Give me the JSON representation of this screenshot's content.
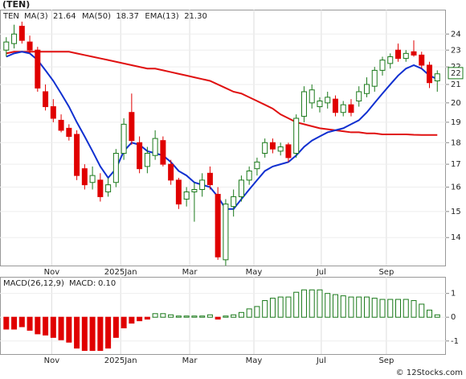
{
  "chart_data": [
    {
      "type": "candlestick",
      "title": "(TEN)",
      "symbol": "TEN",
      "log_scale": true,
      "grid": true,
      "up_color": "#1b7a1b",
      "down_color": "#e00000",
      "categories": [
        null,
        null,
        null,
        null,
        null,
        null,
        null,
        null,
        null,
        null,
        null,
        null,
        null,
        null,
        null,
        null,
        null,
        null,
        null,
        null,
        null,
        null,
        null,
        null,
        null,
        null,
        null,
        null,
        null,
        null,
        null,
        null,
        null,
        null,
        null,
        null,
        null,
        null,
        null,
        null,
        null,
        null,
        null,
        null,
        null,
        null,
        null,
        null,
        null,
        null,
        null,
        null,
        null,
        null,
        null,
        null
      ],
      "open": [
        23.0,
        23.4,
        24.5,
        23.5,
        23.0,
        20.6,
        19.8,
        19.1,
        18.7,
        18.4,
        16.8,
        16.2,
        16.3,
        15.8,
        16.2,
        17.5,
        19.5,
        18.0,
        16.9,
        17.4,
        18.1,
        17.0,
        16.3,
        15.5,
        15.8,
        15.9,
        16.6,
        15.7,
        13.2,
        15.2,
        15.6,
        16.3,
        16.8,
        17.5,
        18.0,
        17.6,
        17.9,
        17.5,
        19.3,
        20.0,
        19.8,
        20.0,
        20.2,
        19.5,
        19.9,
        20.1,
        20.5,
        20.9,
        21.8,
        22.2,
        23.0,
        22.5,
        22.9,
        22.7,
        22.1,
        21.2
      ],
      "high": [
        23.8,
        24.6,
        24.8,
        23.9,
        23.2,
        21.0,
        20.2,
        19.4,
        18.9,
        18.6,
        17.0,
        16.9,
        16.6,
        16.4,
        17.7,
        19.2,
        20.5,
        18.3,
        17.8,
        18.6,
        18.3,
        17.2,
        16.4,
        16.0,
        16.2,
        16.6,
        16.9,
        16.0,
        15.5,
        15.9,
        16.5,
        16.9,
        17.3,
        18.2,
        18.2,
        18.0,
        18.0,
        19.4,
        20.9,
        21.0,
        20.3,
        20.6,
        20.4,
        20.1,
        20.2,
        20.9,
        21.4,
        22.0,
        22.6,
        22.8,
        23.4,
        23.0,
        23.6,
        22.9,
        22.3,
        21.8
      ],
      "low": [
        22.6,
        23.1,
        23.4,
        22.8,
        20.6,
        19.6,
        19.0,
        18.5,
        18.1,
        16.3,
        15.9,
        15.9,
        15.4,
        15.6,
        16.0,
        17.2,
        17.9,
        16.6,
        16.6,
        17.2,
        16.9,
        16.1,
        15.1,
        15.2,
        14.6,
        15.6,
        15.9,
        13.2,
        13.0,
        14.8,
        15.4,
        16.1,
        16.5,
        17.3,
        17.5,
        17.4,
        17.1,
        17.3,
        19.0,
        19.7,
        19.5,
        19.7,
        19.3,
        19.3,
        19.3,
        19.8,
        20.3,
        20.6,
        21.5,
        21.9,
        22.3,
        22.3,
        22.6,
        21.9,
        20.8,
        20.6
      ],
      "close": [
        23.5,
        24.0,
        23.6,
        23.0,
        20.8,
        19.8,
        19.2,
        18.6,
        18.3,
        16.5,
        16.1,
        16.5,
        15.6,
        16.1,
        17.5,
        18.9,
        18.1,
        16.8,
        17.5,
        18.2,
        17.0,
        16.3,
        15.3,
        15.8,
        15.9,
        16.3,
        16.1,
        13.3,
        15.3,
        15.6,
        16.3,
        16.7,
        17.1,
        18.0,
        17.7,
        17.8,
        17.3,
        19.2,
        20.6,
        20.7,
        20.1,
        20.3,
        19.5,
        19.9,
        19.5,
        20.6,
        21.0,
        21.8,
        22.4,
        22.6,
        22.5,
        22.8,
        22.7,
        22.1,
        21.1,
        21.6
      ],
      "ma3": {
        "name": "MA(3)",
        "color": "#2233cc",
        "last": {
          "value": 21.64,
          "label": "21.64"
        }
      },
      "series": [
        {
          "name": "MA(50)",
          "color": "#e01010",
          "last": {
            "value": 18.37,
            "label": "18.37"
          },
          "values": [
            22.8,
            22.9,
            22.9,
            22.9,
            22.9,
            22.9,
            22.9,
            22.9,
            22.9,
            22.8,
            22.7,
            22.6,
            22.5,
            22.4,
            22.3,
            22.2,
            22.1,
            22.0,
            21.9,
            21.9,
            21.8,
            21.7,
            21.6,
            21.5,
            21.4,
            21.3,
            21.2,
            21.0,
            20.8,
            20.6,
            20.5,
            20.3,
            20.1,
            19.9,
            19.7,
            19.4,
            19.2,
            19.0,
            18.9,
            18.8,
            18.7,
            18.65,
            18.6,
            18.55,
            18.5,
            18.5,
            18.45,
            18.45,
            18.4,
            18.4,
            18.4,
            18.4,
            18.38,
            18.37,
            18.37,
            18.37
          ]
        },
        {
          "name": "EMA(13)",
          "color": "#1030d0",
          "last": {
            "value": 21.3,
            "label": "21.30"
          },
          "values": [
            22.6,
            22.8,
            22.9,
            22.8,
            22.4,
            21.8,
            21.2,
            20.5,
            19.8,
            19.0,
            18.3,
            17.6,
            16.9,
            16.4,
            16.8,
            17.6,
            18.0,
            17.9,
            17.6,
            17.5,
            17.4,
            17.1,
            16.7,
            16.5,
            16.2,
            16.1,
            16.0,
            15.6,
            15.1,
            15.1,
            15.5,
            15.9,
            16.3,
            16.7,
            16.9,
            17.0,
            17.1,
            17.4,
            17.8,
            18.1,
            18.3,
            18.5,
            18.6,
            18.7,
            18.9,
            19.1,
            19.5,
            20.0,
            20.5,
            21.0,
            21.5,
            21.9,
            22.1,
            21.9,
            21.5,
            21.3
          ]
        }
      ],
      "price_tag": {
        "value": 21.64,
        "label": "22"
      },
      "ylim": [
        13,
        25.6
      ],
      "yticks": [
        14,
        15,
        16,
        17,
        18,
        19,
        20,
        21,
        22,
        23,
        24
      ],
      "xlim": [
        -0.8,
        56.1
      ],
      "xticks": [
        {
          "value": 5.8,
          "label": "Nov"
        },
        {
          "value": 14.6,
          "label": "2025Jan"
        },
        {
          "value": 23.4,
          "label": "Mar"
        },
        {
          "value": 31.6,
          "label": "May"
        },
        {
          "value": 40.2,
          "label": "Jul"
        },
        {
          "value": 48.5,
          "label": "Sep"
        }
      ]
    },
    {
      "type": "histogram_bar",
      "title": "MACD(26,12,9)",
      "value_name": "MACD:",
      "last": {
        "value": 0.1,
        "label": "0.10"
      },
      "up_color": "#1b7a1b",
      "down_color": "#e00000",
      "grid": true,
      "categories": [
        null,
        null,
        null,
        null,
        null,
        null,
        null,
        null,
        null,
        null,
        null,
        null,
        null,
        null,
        null,
        null,
        null,
        null,
        null,
        null,
        null,
        null,
        null,
        null,
        null,
        null,
        null,
        null,
        null,
        null,
        null,
        null,
        null,
        null,
        null,
        null,
        null,
        null,
        null,
        null,
        null,
        null,
        null,
        null,
        null,
        null,
        null,
        null,
        null,
        null,
        null,
        null,
        null,
        null,
        null,
        null
      ],
      "values": [
        -0.5,
        -0.5,
        -0.4,
        -0.55,
        -0.7,
        -0.75,
        -0.85,
        -0.95,
        -1.05,
        -1.3,
        -1.4,
        -1.4,
        -1.4,
        -1.3,
        -0.85,
        -0.45,
        -0.25,
        -0.15,
        -0.08,
        0.15,
        0.15,
        0.1,
        0.05,
        0.05,
        0.05,
        0.05,
        0.1,
        -0.08,
        0.05,
        0.1,
        0.2,
        0.35,
        0.45,
        0.7,
        0.8,
        0.85,
        0.85,
        1.05,
        1.15,
        1.15,
        1.15,
        1.0,
        0.95,
        0.9,
        0.85,
        0.85,
        0.85,
        0.8,
        0.75,
        0.75,
        0.75,
        0.75,
        0.7,
        0.55,
        0.3,
        0.1
      ],
      "ylim": [
        -1.55,
        1.7
      ],
      "yticks": [
        1,
        0,
        -1
      ],
      "xlim": [
        -0.8,
        56.1
      ],
      "xticks": [
        {
          "value": 5.8,
          "label": "Nov"
        },
        {
          "value": 14.6,
          "label": "2025Jan"
        },
        {
          "value": 23.4,
          "label": "Mar"
        },
        {
          "value": 31.6,
          "label": "May"
        },
        {
          "value": 40.2,
          "label": "Jul"
        },
        {
          "value": 48.5,
          "label": "Sep"
        }
      ]
    }
  ],
  "source": "© 12Stocks.com"
}
